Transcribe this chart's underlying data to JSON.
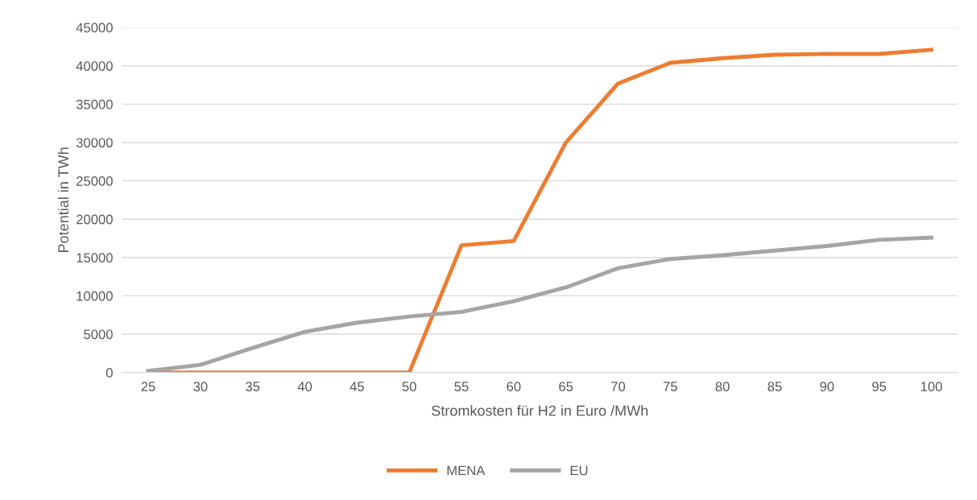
{
  "chart_data": {
    "type": "line",
    "xlabel": "Stromkosten für H2 in Euro /MWh",
    "ylabel": "Potential in TWh",
    "categories": [
      "25",
      "30",
      "35",
      "40",
      "45",
      "50",
      "55",
      "60",
      "65",
      "70",
      "75",
      "80",
      "85",
      "90",
      "95",
      "100"
    ],
    "series": [
      {
        "name": "MENA",
        "color": "#ed7d31",
        "values": [
          0,
          0,
          0,
          0,
          0,
          0,
          16600,
          17150,
          30000,
          37700,
          40400,
          41000,
          41450,
          41550,
          41550,
          42100
        ]
      },
      {
        "name": "EU",
        "color": "#a5a5a5",
        "values": [
          200,
          1000,
          3200,
          5300,
          6500,
          7300,
          7900,
          9300,
          11100,
          13600,
          14800,
          15300,
          15900,
          16500,
          17300,
          17600
        ]
      }
    ],
    "ylim": [
      0,
      45000
    ],
    "yticks": [
      0,
      5000,
      10000,
      15000,
      20000,
      25000,
      30000,
      35000,
      40000,
      45000
    ],
    "grid": "y",
    "legend": "bottom",
    "marker": "none",
    "line_style": "solid"
  }
}
